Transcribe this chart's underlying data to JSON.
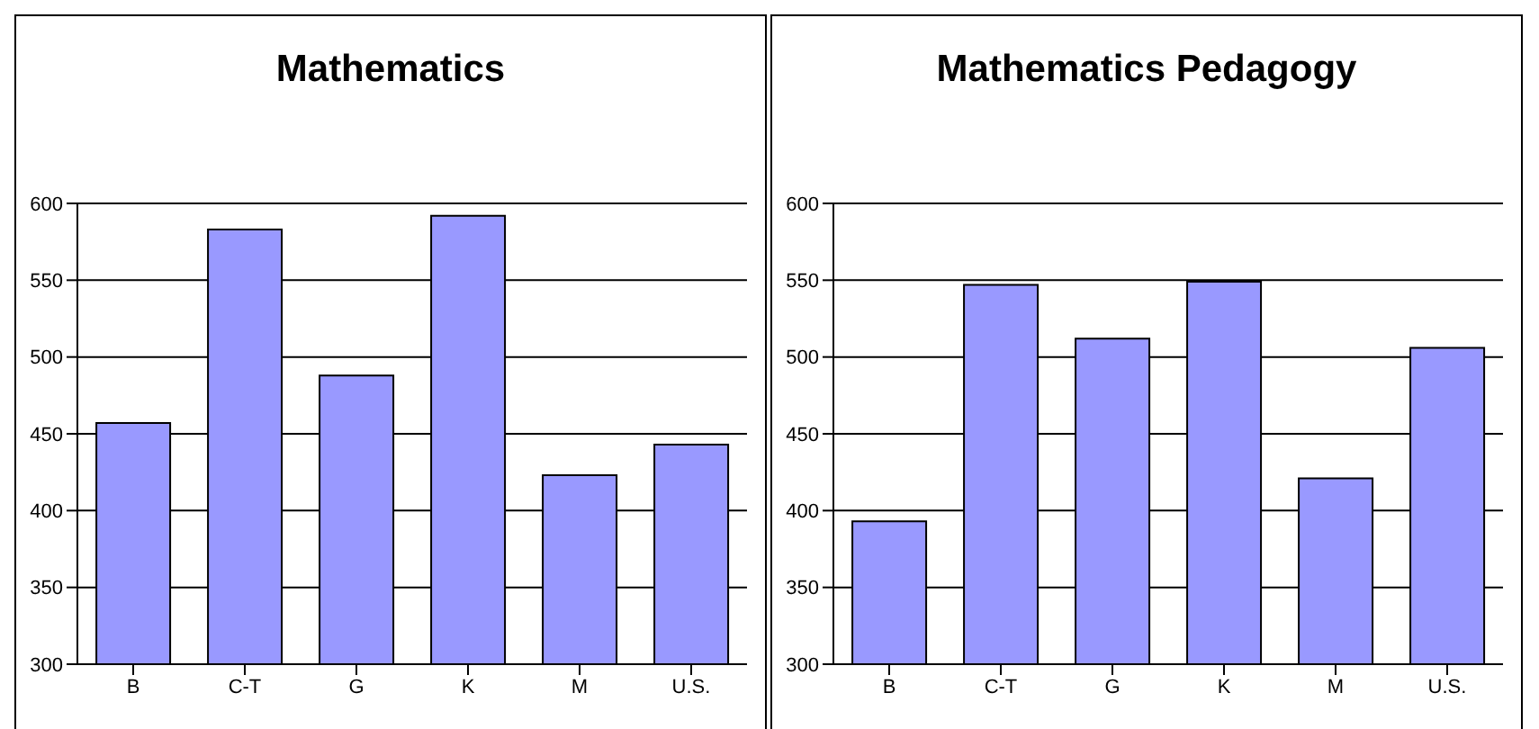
{
  "chart_data": [
    {
      "type": "bar",
      "title": "Mathematics",
      "categories": [
        "B",
        "C-T",
        "G",
        "K",
        "M",
        "U.S."
      ],
      "values": [
        457,
        583,
        488,
        592,
        423,
        443
      ],
      "color": "#9999ff",
      "ylim": [
        300,
        600
      ],
      "yticks": [
        300,
        350,
        400,
        450,
        500,
        550,
        600
      ],
      "grid": "y",
      "legend": false
    },
    {
      "type": "bar",
      "title": "Mathematics Pedagogy",
      "categories": [
        "B",
        "C-T",
        "G",
        "K",
        "M",
        "U.S."
      ],
      "values": [
        393,
        547,
        512,
        549,
        421,
        506
      ],
      "color": "#9999ff",
      "ylim": [
        300,
        600
      ],
      "yticks": [
        300,
        350,
        400,
        450,
        500,
        550,
        600
      ],
      "grid": "y",
      "legend": false
    }
  ]
}
